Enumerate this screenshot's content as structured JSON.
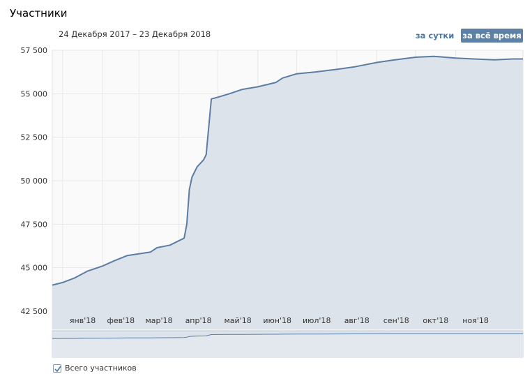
{
  "header": {
    "title": "Участники",
    "date_range": "24 Декабря 2017 – 23 Декабря 2018"
  },
  "period_buttons": {
    "day": "за сутки",
    "all_time": "за всё время"
  },
  "legend": {
    "label": "Всего участников",
    "checked": true
  },
  "colors": {
    "line": "#5b7ca3",
    "fill": "#dde3ea",
    "grid": "#e8e8e8",
    "active_button": "#5e81a8"
  },
  "chart_data": {
    "type": "area",
    "ylim": [
      42500,
      57500
    ],
    "y_ticks": [
      42500,
      45000,
      47500,
      50000,
      52500,
      55000,
      57500
    ],
    "y_tick_labels": [
      "42 500",
      "45 000",
      "47 500",
      "50 000",
      "52 500",
      "55 000",
      "57 500"
    ],
    "x_start": "2017-12-24",
    "x_end": "2018-12-23",
    "x_tick_labels": [
      "янв'18",
      "фев'18",
      "мар'18",
      "апр'18",
      "май'18",
      "июн'18",
      "июл'18",
      "авг'18",
      "сен'18",
      "окт'18",
      "ноя'18"
    ],
    "x_tick_dates": [
      "2018-01-01",
      "2018-02-01",
      "2018-03-01",
      "2018-04-01",
      "2018-05-01",
      "2018-06-01",
      "2018-07-01",
      "2018-08-01",
      "2018-09-01",
      "2018-10-01",
      "2018-11-01"
    ],
    "grid": true,
    "series": [
      {
        "name": "Всего участников",
        "points": [
          [
            "2017-12-24",
            44000
          ],
          [
            "2018-01-01",
            44150
          ],
          [
            "2018-01-10",
            44400
          ],
          [
            "2018-01-20",
            44800
          ],
          [
            "2018-02-01",
            45100
          ],
          [
            "2018-02-10",
            45400
          ],
          [
            "2018-02-20",
            45700
          ],
          [
            "2018-03-01",
            45800
          ],
          [
            "2018-03-10",
            45900
          ],
          [
            "2018-03-15",
            46150
          ],
          [
            "2018-03-25",
            46300
          ],
          [
            "2018-04-05",
            46700
          ],
          [
            "2018-04-07",
            47500
          ],
          [
            "2018-04-09",
            49500
          ],
          [
            "2018-04-11",
            50200
          ],
          [
            "2018-04-15",
            50800
          ],
          [
            "2018-04-20",
            51200
          ],
          [
            "2018-04-22",
            51500
          ],
          [
            "2018-04-26",
            54700
          ],
          [
            "2018-05-01",
            54800
          ],
          [
            "2018-05-10",
            55000
          ],
          [
            "2018-05-20",
            55250
          ],
          [
            "2018-06-01",
            55400
          ],
          [
            "2018-06-15",
            55650
          ],
          [
            "2018-06-20",
            55900
          ],
          [
            "2018-07-01",
            56150
          ],
          [
            "2018-07-15",
            56250
          ],
          [
            "2018-08-01",
            56400
          ],
          [
            "2018-08-15",
            56550
          ],
          [
            "2018-09-01",
            56800
          ],
          [
            "2018-09-15",
            56950
          ],
          [
            "2018-10-01",
            57100
          ],
          [
            "2018-10-15",
            57150
          ],
          [
            "2018-11-01",
            57050
          ],
          [
            "2018-11-15",
            57000
          ],
          [
            "2018-12-01",
            56950
          ],
          [
            "2018-12-15",
            57000
          ],
          [
            "2018-12-23",
            57000
          ]
        ]
      }
    ]
  }
}
